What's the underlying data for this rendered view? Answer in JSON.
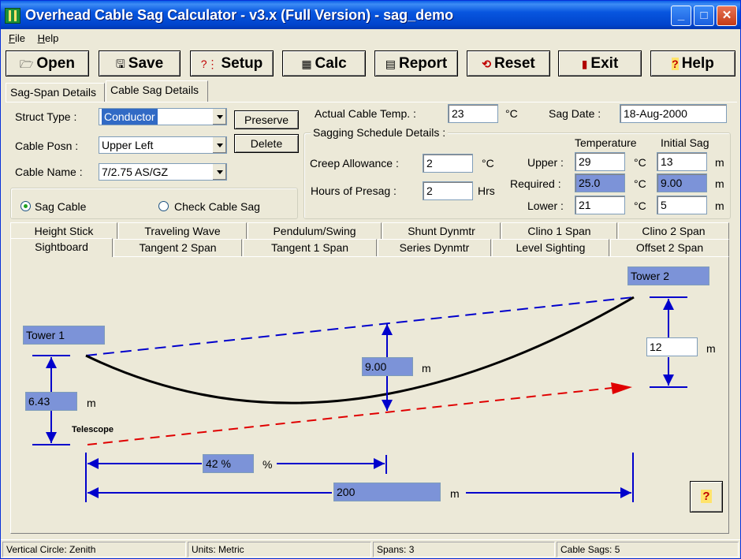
{
  "window": {
    "title": "Overhead Cable Sag Calculator - v3.x (Full Version)  -  sag_demo"
  },
  "titlebar_buttons": {
    "minimize": "_",
    "maximize": "□",
    "close": "✕"
  },
  "menu": [
    {
      "label": "File",
      "accel": "F",
      "rest": "ile"
    },
    {
      "label": "Help",
      "accel": "H",
      "rest": "elp"
    }
  ],
  "toolbar": [
    {
      "id": "open",
      "label": "Open",
      "icon": "folder-icon",
      "glyph": "🗁"
    },
    {
      "id": "save",
      "label": "Save",
      "icon": "save-icon",
      "glyph": "🖫"
    },
    {
      "id": "setup",
      "label": "Setup",
      "icon": "setup-icon",
      "glyph": "?⋮"
    },
    {
      "id": "calc",
      "label": "Calc",
      "icon": "calculator-icon",
      "glyph": "▦"
    },
    {
      "id": "report",
      "label": "Report",
      "icon": "report-icon",
      "glyph": "▤"
    },
    {
      "id": "reset",
      "label": "Reset",
      "icon": "reset-icon",
      "glyph": "⟲"
    },
    {
      "id": "exit",
      "label": "Exit",
      "icon": "exit-door-icon",
      "glyph": "▮"
    },
    {
      "id": "help",
      "label": "Help",
      "icon": "help-icon",
      "glyph": "?"
    }
  ],
  "top_tabs": [
    {
      "label": "Sag-Span Details",
      "active": false
    },
    {
      "label": "Cable Sag Details",
      "active": true
    }
  ],
  "form": {
    "struct_type_label": "Struct Type :",
    "struct_type_value": "Conductor",
    "cable_posn_label": "Cable Posn :",
    "cable_posn_value": "Upper Left",
    "cable_name_label": "Cable Name :",
    "cable_name_value": "7/2.75 AS/GZ",
    "preserve_label": "Preserve",
    "delete_label": "Delete",
    "radio_sag_cable": "Sag Cable",
    "radio_check_sag": "Check Cable Sag",
    "actual_temp_label": "Actual Cable Temp. :",
    "actual_temp_value": "23",
    "actual_temp_unit": "°C",
    "sag_date_label": "Sag Date :",
    "sag_date_value": "18-Aug-2000"
  },
  "schedule": {
    "title": "Sagging Schedule Details :",
    "creep_label": "Creep Allowance :",
    "creep_value": "2",
    "creep_unit": "°C",
    "presag_label": "Hours of Presag :",
    "presag_value": "2",
    "presag_unit": "Hrs",
    "temp_header": "Temperature",
    "sag_header": "Initial Sag",
    "rows": [
      {
        "label": "Upper :",
        "temp": "29",
        "temp_unit": "°C",
        "sag": "13",
        "sag_unit": "m",
        "highlight": false
      },
      {
        "label": "Required :",
        "temp": "25.0",
        "temp_unit": "°C",
        "sag": "9.00",
        "sag_unit": "m",
        "highlight": true
      },
      {
        "label": "Lower :",
        "temp": "21",
        "temp_unit": "°C",
        "sag": "5",
        "sag_unit": "m",
        "highlight": false
      }
    ]
  },
  "method_tabs_row1": [
    "Height Stick",
    "Traveling Wave",
    "Pendulum/Swing",
    "Shunt Dynmtr",
    "Clino 1 Span",
    "Clino 2 Span"
  ],
  "method_tabs_row2": [
    "Sightboard",
    "Tangent 2 Span",
    "Tangent 1 Span",
    "Series Dynmtr",
    "Level Sighting",
    "Offset 2 Span"
  ],
  "diagram": {
    "tower1_label": "Tower 1",
    "tower2_label": "Tower 2",
    "telescope_label": "Telescope",
    "tower1_height": "6.43",
    "tower1_height_unit": "m",
    "tower2_height": "12",
    "tower2_height_unit": "m",
    "sag_value": "9.00",
    "sag_unit": "m",
    "percent_value": "42 %",
    "percent_unit": "%",
    "span_value": "200",
    "span_unit": "m",
    "help_glyph": "?"
  },
  "colors": {
    "accent_blue": "#0000CC",
    "sight_red": "#E00000",
    "highlight_box": "#7C93D8"
  },
  "status": [
    "Vertical Circle: Zenith",
    "Units: Metric",
    "Spans: 3",
    "Cable Sags: 5"
  ]
}
